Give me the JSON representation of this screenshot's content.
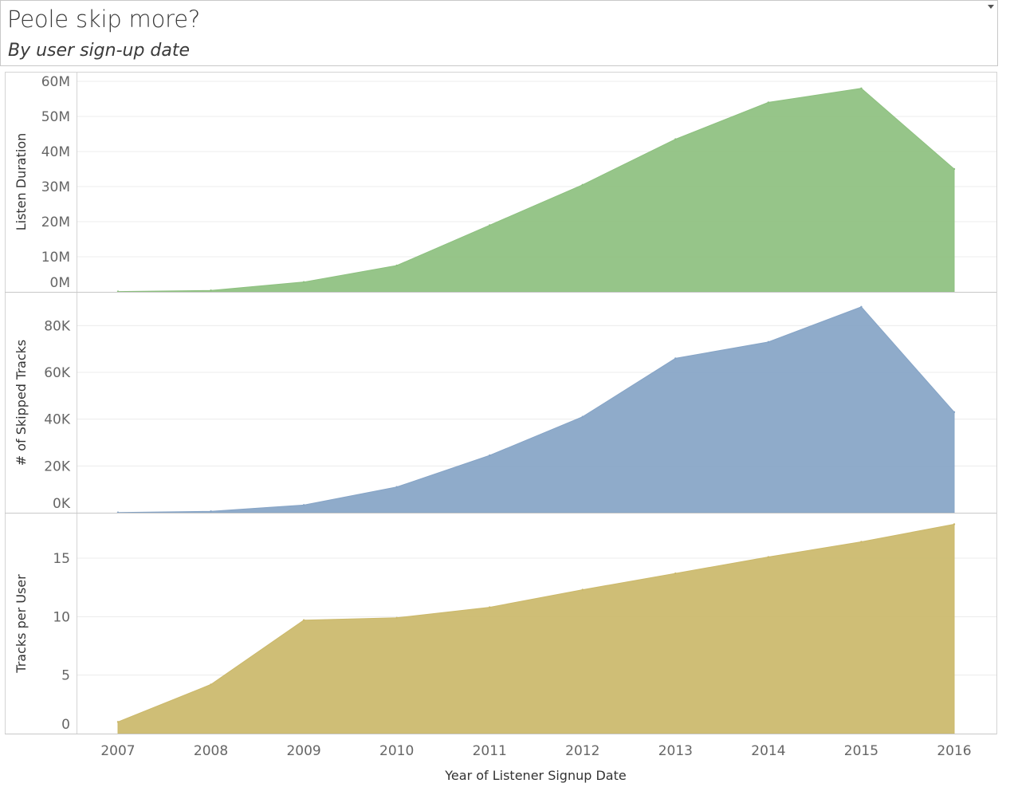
{
  "header": {
    "title": "Peole skip more?",
    "subtitle": "By user sign-up date"
  },
  "chart_data": {
    "type": "area",
    "x": [
      "2007",
      "2008",
      "2009",
      "2010",
      "2011",
      "2012",
      "2013",
      "2014",
      "2015",
      "2016"
    ],
    "xlabel": "Year of Listener Signup Date",
    "series": [
      {
        "ylabel": "Listen Duration",
        "color": "#8dc07f",
        "values": [
          100000,
          400000,
          2800000,
          7500000,
          19000000,
          30500000,
          43500000,
          54000000,
          58000000,
          35000000
        ],
        "yticks": [
          {
            "value": 0,
            "label": "0M"
          },
          {
            "value": 10000000,
            "label": "10M"
          },
          {
            "value": 20000000,
            "label": "20M"
          },
          {
            "value": 30000000,
            "label": "30M"
          },
          {
            "value": 40000000,
            "label": "40M"
          },
          {
            "value": 50000000,
            "label": "50M"
          },
          {
            "value": 60000000,
            "label": "60M"
          }
        ],
        "ylim": [
          0,
          60000000
        ]
      },
      {
        "ylabel": "# of Skipped Tracks",
        "color": "#86a4c6",
        "values": [
          100,
          600,
          3300,
          11000,
          24500,
          41000,
          66000,
          73000,
          88000,
          43000
        ],
        "yticks": [
          {
            "value": 0,
            "label": "0K"
          },
          {
            "value": 20000,
            "label": "20K"
          },
          {
            "value": 40000,
            "label": "40K"
          },
          {
            "value": 60000,
            "label": "60K"
          },
          {
            "value": 80000,
            "label": "80K"
          }
        ],
        "ylim": [
          0,
          90000
        ]
      },
      {
        "ylabel": "Tracks per User",
        "color": "#cbb86a",
        "values": [
          1.0,
          4.2,
          9.7,
          9.9,
          10.8,
          12.3,
          13.7,
          15.1,
          16.4,
          17.9
        ],
        "yticks": [
          {
            "value": 0,
            "label": "0"
          },
          {
            "value": 5,
            "label": "5"
          },
          {
            "value": 10,
            "label": "10"
          },
          {
            "value": 15,
            "label": "15"
          }
        ],
        "ylim": [
          0,
          18
        ]
      }
    ],
    "grid": true
  }
}
